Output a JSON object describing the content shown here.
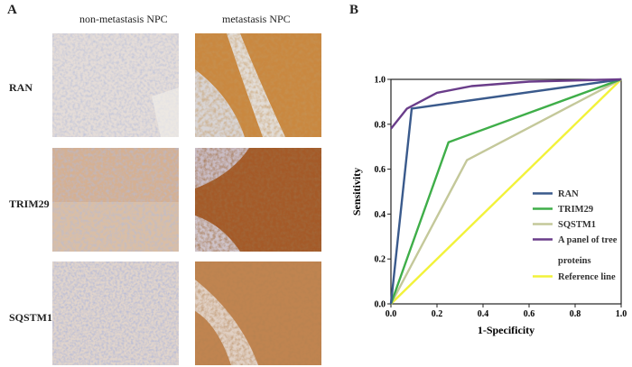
{
  "panelA": {
    "letter": "A",
    "columns": [
      "non-metastasis  NPC",
      "metastasis  NPC"
    ],
    "rows": [
      "RAN",
      "TRIM29",
      "SQSTM1"
    ]
  },
  "panelB": {
    "letter": "B",
    "chart_data": {
      "type": "line",
      "title": "",
      "xlabel": "1-Specificity",
      "ylabel": "Sensitivity",
      "xlim": [
        0.0,
        1.0
      ],
      "ylim": [
        0.0,
        1.0
      ],
      "xticks": [
        "0.0",
        "0.2",
        "0.4",
        "0.6",
        "0.8",
        "1.0"
      ],
      "yticks": [
        "0.0",
        "0.2",
        "0.4",
        "0.6",
        "0.8",
        "1.0"
      ],
      "grid": false,
      "legend_position": "bottom-right",
      "series": [
        {
          "name": "RAN",
          "color": "#3a5a8c",
          "points": [
            [
              0,
              0
            ],
            [
              0.09,
              0.87
            ],
            [
              1,
              1
            ]
          ]
        },
        {
          "name": "TRIM29",
          "color": "#3fae49",
          "points": [
            [
              0,
              0
            ],
            [
              0.25,
              0.72
            ],
            [
              1,
              1
            ]
          ]
        },
        {
          "name": "SQSTM1",
          "color": "#c4c89a",
          "points": [
            [
              0,
              0
            ],
            [
              0.33,
              0.64
            ],
            [
              1,
              1
            ]
          ]
        },
        {
          "name": "A panel of tree proteins",
          "color": "#6a3d8a",
          "points": [
            [
              0,
              0.78
            ],
            [
              0.07,
              0.87
            ],
            [
              0.2,
              0.94
            ],
            [
              0.35,
              0.97
            ],
            [
              0.6,
              0.99
            ],
            [
              1,
              1
            ]
          ]
        },
        {
          "name": "Reference line",
          "color": "#f2f23a",
          "points": [
            [
              0,
              0
            ],
            [
              1,
              1
            ]
          ]
        }
      ],
      "legend_labels": [
        "RAN",
        "TRIM29",
        "SQSTM1",
        "A panel of tree",
        "proteins",
        "Reference line"
      ]
    }
  }
}
